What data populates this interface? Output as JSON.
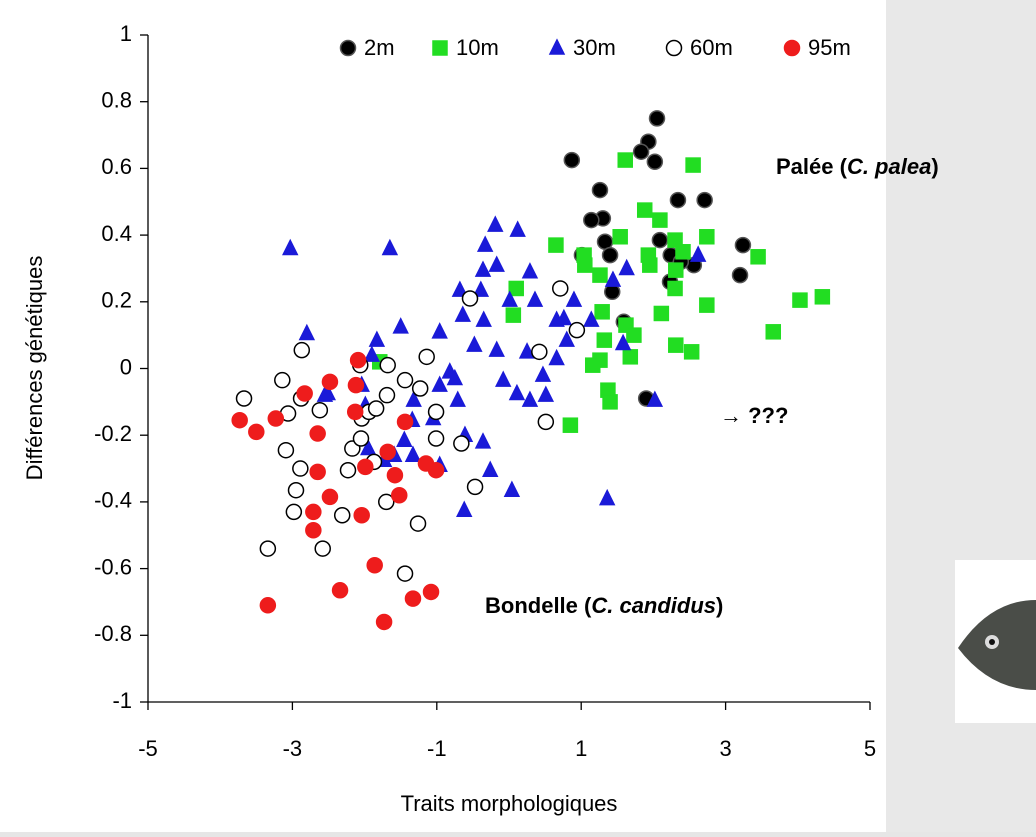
{
  "chart_data": {
    "type": "scatter",
    "xlabel": "Traits morphologiques",
    "ylabel": "Différences génétiques",
    "xlim": [
      -5,
      5
    ],
    "ylim": [
      -1,
      1
    ],
    "xticks": [
      -5,
      -3,
      -1,
      1,
      3,
      5
    ],
    "yticks": [
      -1,
      -0.8,
      -0.6,
      -0.4,
      -0.2,
      0,
      0.2,
      0.4,
      0.6,
      0.8,
      1
    ],
    "legend": "upper right",
    "annotations": [
      [
        "Palée (",
        "C. palea",
        ")"
      ],
      [
        "Bondelle (",
        "C. candidus",
        ")"
      ],
      [
        "→ ???"
      ]
    ],
    "series": [
      {
        "name": "2m",
        "color": "#000000",
        "edgecolor": "#555555",
        "marker": "circle",
        "x": [
          0.87,
          2.05,
          1.93,
          1.83,
          2.02,
          1.26,
          1.3,
          1.14,
          1.33,
          1.4,
          1.01,
          1.43,
          2.09,
          2.24,
          2.34,
          2.71,
          2.56,
          2.38,
          2.23,
          3.24,
          3.2,
          1.59,
          1.9
        ],
        "y": [
          0.625,
          0.75,
          0.68,
          0.65,
          0.62,
          0.535,
          0.45,
          0.445,
          0.38,
          0.34,
          0.34,
          0.23,
          0.385,
          0.34,
          0.505,
          0.505,
          0.31,
          0.32,
          0.26,
          0.37,
          0.28,
          0.14,
          -0.09
        ]
      },
      {
        "name": "10m",
        "color": "#22dd22",
        "edgecolor": "#22dd22",
        "marker": "square",
        "x": [
          1.61,
          2.55,
          1.88,
          2.09,
          0.65,
          1.04,
          1.54,
          1.93,
          2.3,
          2.41,
          2.31,
          1.95,
          2.74,
          3.45,
          1.05,
          1.26,
          1.29,
          1.62,
          1.73,
          1.32,
          2.3,
          2.74,
          2.11,
          0.1,
          0.06,
          2.31,
          2.53,
          3.66,
          4.03,
          4.34,
          1.26,
          1.16,
          1.37,
          1.68,
          1.4,
          0.85,
          -1.79
        ],
        "y": [
          0.625,
          0.61,
          0.475,
          0.445,
          0.37,
          0.34,
          0.395,
          0.34,
          0.385,
          0.35,
          0.295,
          0.31,
          0.395,
          0.335,
          0.31,
          0.28,
          0.17,
          0.13,
          0.1,
          0.085,
          0.24,
          0.19,
          0.165,
          0.24,
          0.16,
          0.07,
          0.05,
          0.11,
          0.205,
          0.215,
          0.025,
          0.01,
          -0.065,
          0.035,
          -0.1,
          -0.17,
          0.02
        ]
      },
      {
        "name": "30m",
        "color": "#1a1ad8",
        "edgecolor": "#1a1ad8",
        "marker": "triangle",
        "x": [
          -3.03,
          -1.65,
          -2.8,
          -2.51,
          -0.19,
          -0.33,
          0.12,
          -0.36,
          -0.17,
          0.29,
          -0.68,
          -0.64,
          -0.39,
          -0.96,
          -1.83,
          -1.9,
          -1.5,
          -1.32,
          -0.96,
          -0.75,
          -0.71,
          -0.61,
          -0.36,
          -0.26,
          -0.62,
          0.04,
          -1.45,
          -1.95,
          -1.59,
          -1.33,
          -0.96,
          -1.05,
          -0.48,
          -0.17,
          0.25,
          -0.08,
          0.11,
          0.47,
          0.51,
          0.29,
          0.66,
          0.8,
          0.36,
          0.66,
          0.01,
          -0.35,
          1.44,
          1.63,
          1.58,
          2.02,
          1.36,
          2.62,
          0.9,
          0.76,
          1.14,
          -0.82,
          -1.34,
          -2.55,
          -1.99,
          -2.04,
          -1.73
        ],
        "y": [
          0.36,
          0.36,
          0.105,
          -0.075,
          0.43,
          0.37,
          0.415,
          0.295,
          0.31,
          0.29,
          0.235,
          0.16,
          0.235,
          0.11,
          0.085,
          0.04,
          0.125,
          -0.095,
          -0.05,
          -0.03,
          -0.095,
          -0.2,
          -0.22,
          -0.305,
          -0.425,
          -0.365,
          -0.215,
          -0.24,
          -0.26,
          -0.26,
          -0.29,
          -0.15,
          0.07,
          0.055,
          0.05,
          -0.035,
          -0.075,
          -0.02,
          -0.08,
          -0.095,
          0.03,
          0.085,
          0.205,
          0.145,
          0.205,
          0.145,
          0.265,
          0.3,
          0.075,
          -0.095,
          -0.39,
          0.34,
          0.205,
          0.15,
          0.145,
          -0.01,
          -0.155,
          -0.08,
          -0.11,
          -0.05,
          -0.275
        ]
      },
      {
        "name": "60m",
        "color": "#ffffff",
        "edgecolor": "#000000",
        "marker": "circle",
        "x": [
          -2.87,
          -3.67,
          -3.14,
          -2.88,
          -3.06,
          -2.04,
          -3.09,
          -2.89,
          -2.95,
          -2.98,
          -2.31,
          -3.34,
          -2.58,
          -0.54,
          0.71,
          0.94,
          0.42,
          0.51,
          -2.06,
          -1.68,
          -1.44,
          -1.14,
          -1.23,
          -1.01,
          -1.01,
          -1.69,
          -1.94,
          -1.84,
          -2.17,
          -2.05,
          -1.87,
          -1.7,
          -1.26,
          -1.44,
          -0.47,
          -0.66,
          -2.23,
          -2.62
        ],
        "y": [
          0.055,
          -0.09,
          -0.035,
          -0.09,
          -0.135,
          -0.15,
          -0.245,
          -0.3,
          -0.365,
          -0.43,
          -0.44,
          -0.54,
          -0.54,
          0.21,
          0.24,
          0.115,
          0.05,
          -0.16,
          0.01,
          0.01,
          -0.035,
          0.035,
          -0.06,
          -0.13,
          -0.21,
          -0.08,
          -0.13,
          -0.12,
          -0.24,
          -0.21,
          -0.28,
          -0.4,
          -0.465,
          -0.615,
          -0.355,
          -0.225,
          -0.305,
          -0.125
        ]
      },
      {
        "name": "95m",
        "color": "#ee1c1c",
        "edgecolor": "#ee1c1c",
        "marker": "circle",
        "x": [
          -3.73,
          -3.5,
          -3.23,
          -2.83,
          -2.09,
          -2.12,
          -2.48,
          -2.65,
          -2.13,
          -2.65,
          -2.48,
          -2.71,
          -2.71,
          -2.04,
          -1.99,
          -1.68,
          -1.58,
          -1.52,
          -1.44,
          -1.15,
          -1.01,
          -1.86,
          -2.34,
          -3.34,
          -1.73,
          -1.33,
          -1.08
        ],
        "y": [
          -0.155,
          -0.19,
          -0.15,
          -0.075,
          0.025,
          -0.05,
          -0.04,
          -0.195,
          -0.13,
          -0.31,
          -0.385,
          -0.43,
          -0.485,
          -0.44,
          -0.295,
          -0.25,
          -0.32,
          -0.38,
          -0.16,
          -0.285,
          -0.305,
          -0.59,
          -0.665,
          -0.71,
          -0.76,
          -0.69,
          -0.67
        ]
      }
    ]
  }
}
